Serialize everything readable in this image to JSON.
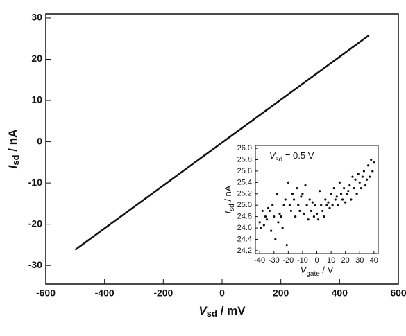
{
  "chart_data": [
    {
      "type": "line",
      "x_label": {
        "main": "V",
        "sub": "sd",
        "rest": " / mV"
      },
      "y_label": {
        "main": "I",
        "sub": "sd",
        "rest": " / nA"
      },
      "xlim": [
        -600,
        600
      ],
      "xticks": [
        -600,
        -400,
        -200,
        0,
        200,
        400,
        600
      ],
      "ylim": [
        -34.5,
        31
      ],
      "yticks": [
        -30,
        -20,
        -10,
        0,
        10,
        20,
        30
      ],
      "x": [
        -500,
        500
      ],
      "series": [
        {
          "color": "#111111",
          "values": [
            -26.2,
            25.8
          ]
        }
      ]
    },
    {
      "type": "scatter",
      "annotation": {
        "main": "V",
        "sub": "sd",
        "rest": " = 0.5 V"
      },
      "x_label": {
        "main": "V",
        "sub": "gate",
        "rest": " / V"
      },
      "y_label": {
        "main": "I",
        "sub": "sd",
        "rest": " / nA"
      },
      "xlim": [
        -43,
        43
      ],
      "xticks": [
        -40,
        -30,
        -20,
        -10,
        0,
        10,
        20,
        30,
        40
      ],
      "ylim": [
        24.15,
        26.05
      ],
      "yticks": [
        24.2,
        24.4,
        24.6,
        24.8,
        {
          "value": 25,
          "label": "25.0"
        },
        25.2,
        25.4,
        25.6,
        25.8,
        {
          "value": 26,
          "label": "26.0"
        }
      ],
      "color": "#111111",
      "x": [
        -40,
        -39,
        -38,
        -37,
        -36,
        -35,
        -34,
        -33,
        -32,
        -31,
        -30,
        -29,
        -28,
        -27,
        -26,
        -25,
        -24,
        -23,
        -22,
        -21,
        -20,
        -19,
        -18,
        -17,
        -16,
        -15,
        -14,
        -13,
        -12,
        -11,
        -10,
        -9,
        -8,
        -7,
        -6,
        -5,
        -4,
        -3,
        -2,
        -1,
        0,
        1,
        2,
        3,
        4,
        5,
        6,
        7,
        8,
        9,
        10,
        11,
        12,
        13,
        14,
        15,
        16,
        17,
        18,
        19,
        20,
        21,
        22,
        23,
        24,
        25,
        26,
        27,
        28,
        29,
        30,
        31,
        32,
        33,
        34,
        35,
        36,
        37,
        38,
        39,
        40
      ],
      "values": [
        24.7,
        24.6,
        24.9,
        24.65,
        24.8,
        24.75,
        24.95,
        24.9,
        24.55,
        25.0,
        24.8,
        24.4,
        25.2,
        24.7,
        24.85,
        24.8,
        24.6,
        25.0,
        25.1,
        24.3,
        25.4,
        25.0,
        24.9,
        25.2,
        25.1,
        24.8,
        25.3,
        25.0,
        24.9,
        25.15,
        25.2,
        24.85,
        25.35,
        25.0,
        24.75,
        25.1,
        24.9,
        25.05,
        24.8,
        25.0,
        24.85,
        24.75,
        25.25,
        25.0,
        24.9,
        24.8,
        25.1,
        25.0,
        25.05,
        24.95,
        25.2,
        25.0,
        25.3,
        25.1,
        25.15,
        25.0,
        25.4,
        25.2,
        25.1,
        25.3,
        25.05,
        25.2,
        25.25,
        25.35,
        25.1,
        25.5,
        25.3,
        25.45,
        25.2,
        25.55,
        25.4,
        25.3,
        25.5,
        25.6,
        25.35,
        25.45,
        25.7,
        25.5,
        25.8,
        25.6,
        25.75
      ]
    }
  ]
}
